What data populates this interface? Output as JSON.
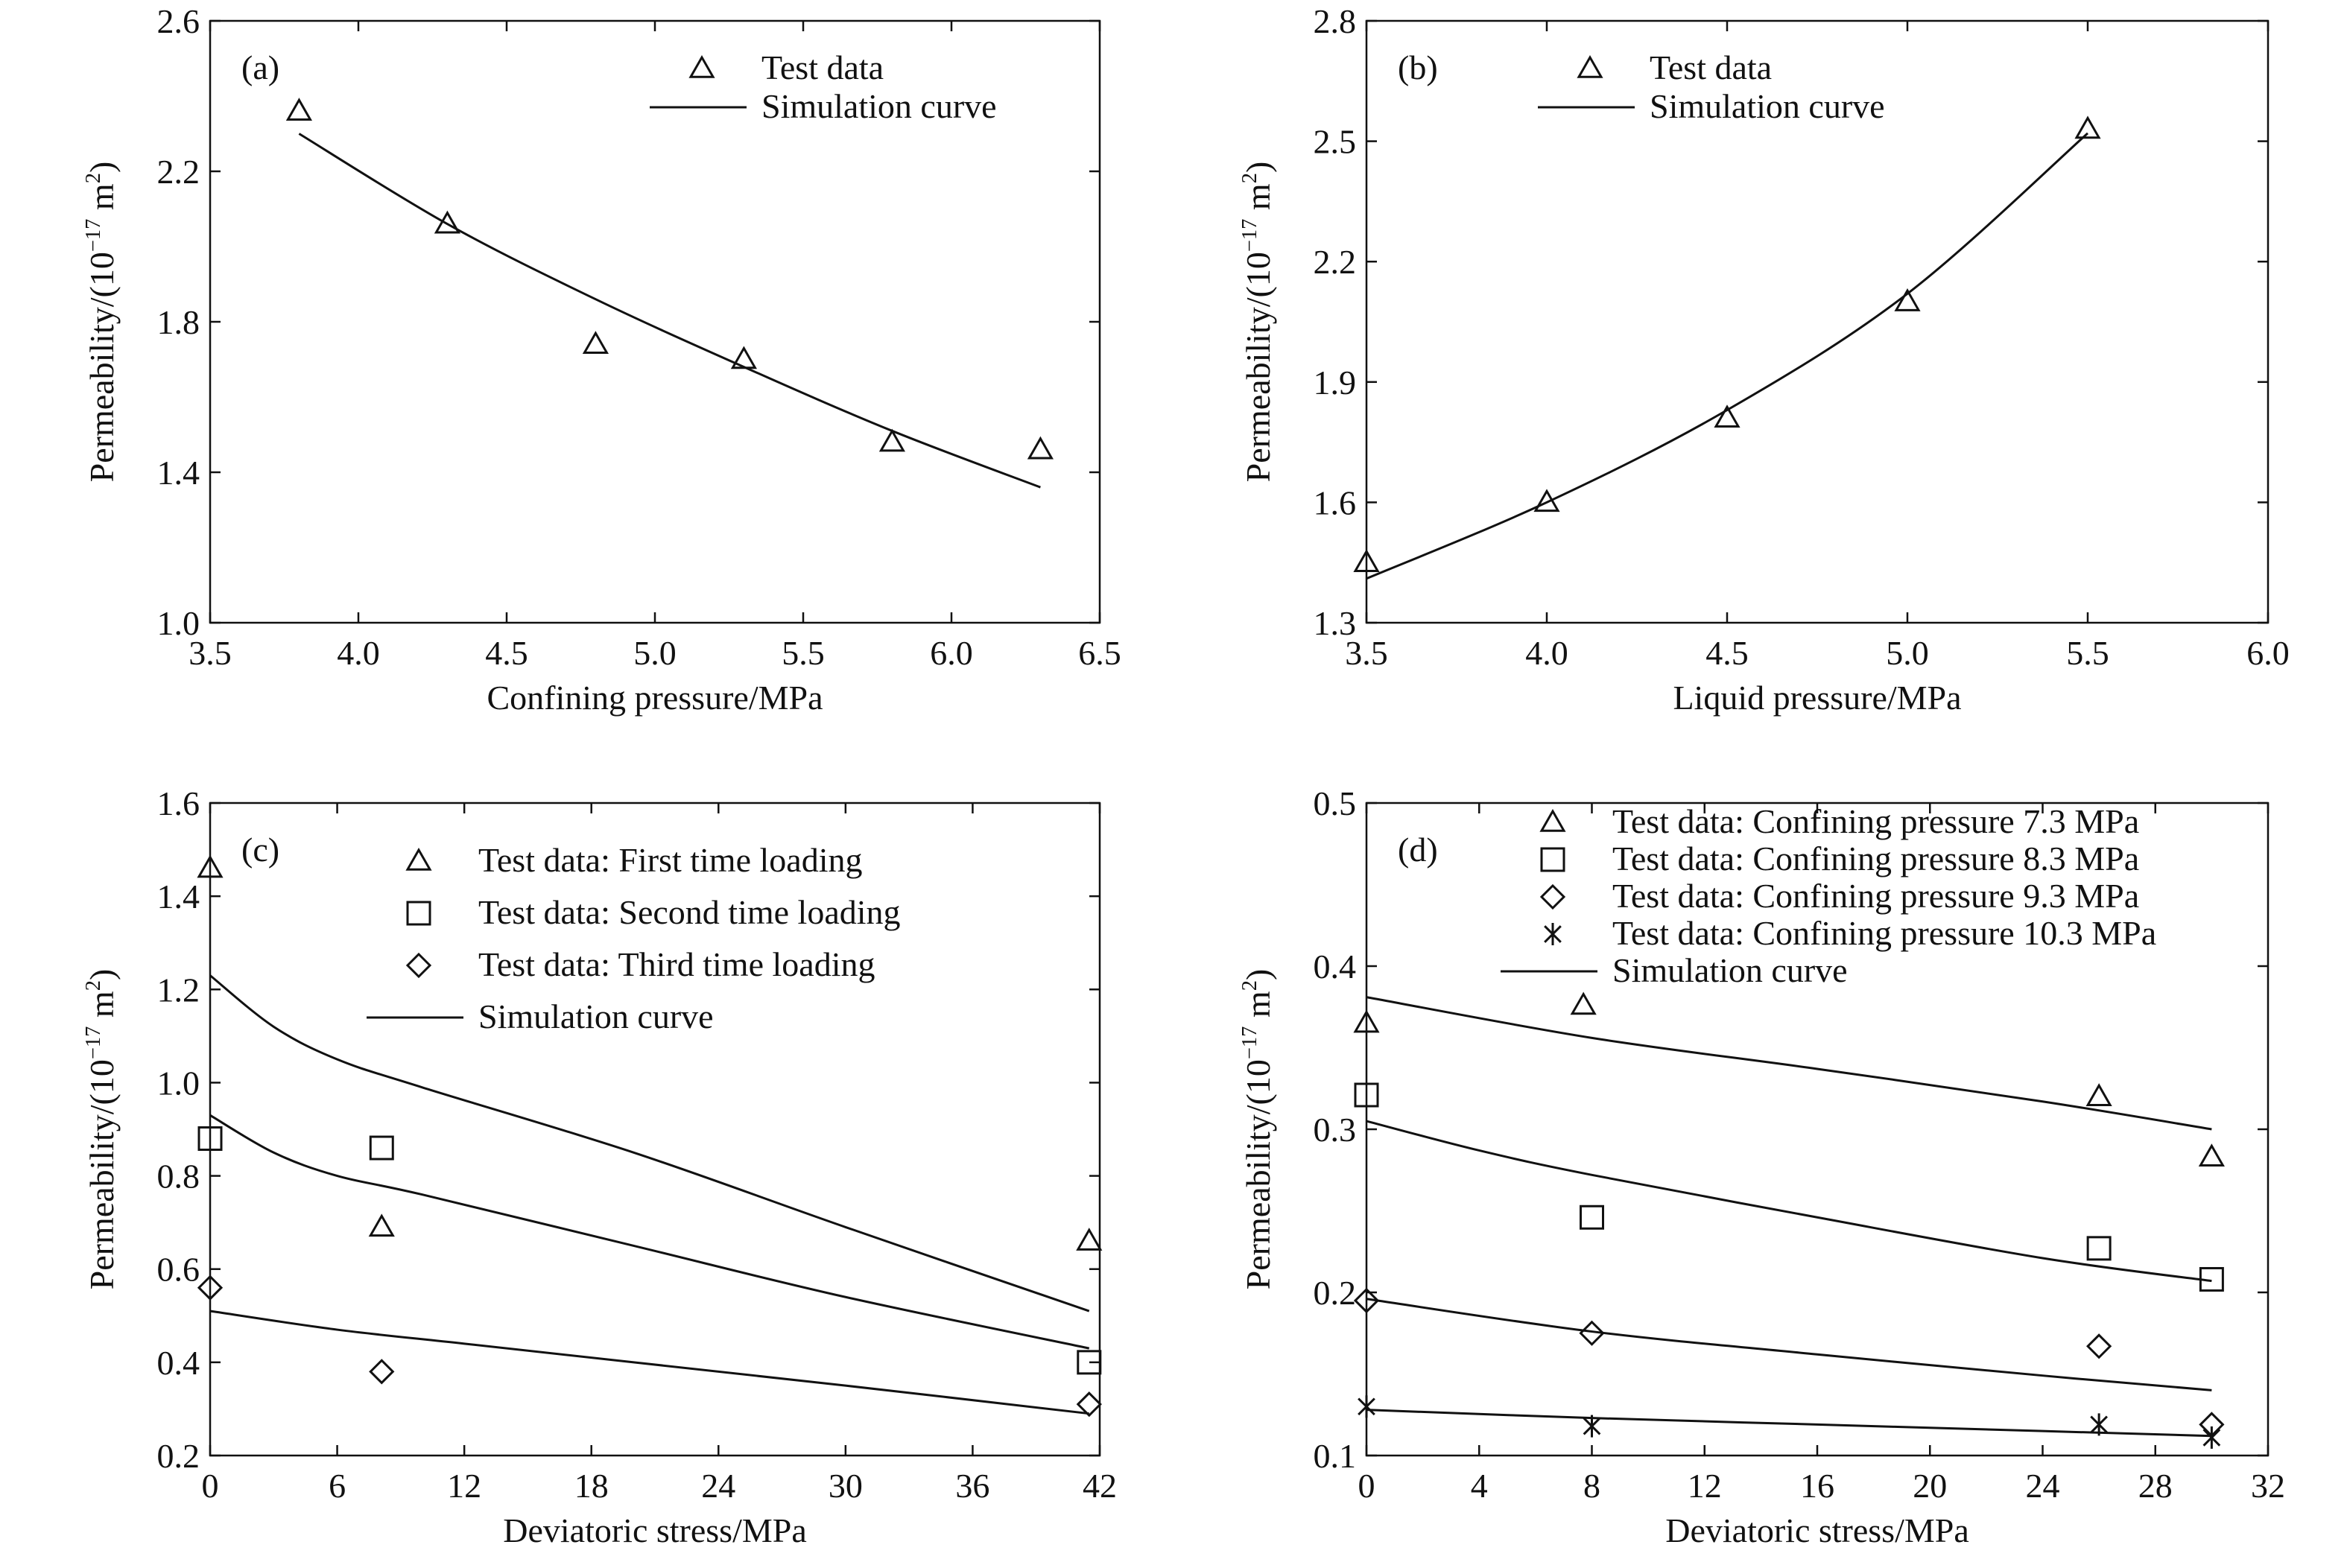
{
  "chart_data": [
    {
      "panel_label": "(a)",
      "type": "scatter",
      "xlabel": "Confining pressure/MPa",
      "ylabel_main": "Permeability/(10",
      "ylabel_exp": "−17",
      "ylabel_unit": " m",
      "ylabel_exp2": "2",
      "ylabel_close": ")",
      "xlim": [
        3.5,
        6.5
      ],
      "ylim": [
        1.0,
        2.6
      ],
      "xticks": [
        3.5,
        4.0,
        4.5,
        5.0,
        5.5,
        6.0,
        6.5
      ],
      "yticks": [
        1.0,
        1.4,
        1.8,
        2.2,
        2.6
      ],
      "x_decimals": 1,
      "y_decimals": 1,
      "legend": [
        {
          "marker": "triangle",
          "label": "Test data"
        },
        {
          "marker": "line",
          "label": "Simulation curve"
        }
      ],
      "series": [
        {
          "marker": "triangle",
          "x": [
            3.8,
            4.3,
            4.8,
            5.3,
            5.8,
            6.3
          ],
          "y": [
            2.36,
            2.06,
            1.74,
            1.7,
            1.48,
            1.46
          ]
        }
      ],
      "curves": [
        {
          "x": [
            3.8,
            4.3,
            4.8,
            5.3,
            5.8,
            6.3
          ],
          "y": [
            2.3,
            2.06,
            1.86,
            1.68,
            1.51,
            1.36
          ]
        }
      ]
    },
    {
      "panel_label": "(b)",
      "type": "scatter",
      "xlabel": "Liquid pressure/MPa",
      "ylabel_main": "Permeability/(10",
      "ylabel_exp": "−17",
      "ylabel_unit": " m",
      "ylabel_exp2": "2",
      "ylabel_close": ")",
      "xlim": [
        3.5,
        6.0
      ],
      "ylim": [
        1.3,
        2.8
      ],
      "xticks": [
        3.5,
        4.0,
        4.5,
        5.0,
        5.5,
        6.0
      ],
      "yticks": [
        1.3,
        1.6,
        1.9,
        2.2,
        2.5,
        2.8
      ],
      "x_decimals": 1,
      "y_decimals": 1,
      "legend": [
        {
          "marker": "triangle",
          "label": "Test data"
        },
        {
          "marker": "line",
          "label": "Simulation curve"
        }
      ],
      "series": [
        {
          "marker": "triangle",
          "x": [
            3.5,
            4.0,
            4.5,
            5.0,
            5.5
          ],
          "y": [
            1.45,
            1.6,
            1.81,
            2.1,
            2.53
          ]
        }
      ],
      "curves": [
        {
          "x": [
            3.5,
            4.0,
            4.5,
            5.0,
            5.5
          ],
          "y": [
            1.41,
            1.6,
            1.83,
            2.12,
            2.52
          ]
        }
      ]
    },
    {
      "panel_label": "(c)",
      "type": "scatter",
      "xlabel": "Deviatoric stress/MPa",
      "ylabel_main": "Permeability/(10",
      "ylabel_exp": "−17",
      "ylabel_unit": " m",
      "ylabel_exp2": "2",
      "ylabel_close": ")",
      "xlim": [
        0,
        42
      ],
      "ylim": [
        0.2,
        1.6
      ],
      "xticks": [
        0,
        6,
        12,
        18,
        24,
        30,
        36,
        42
      ],
      "yticks": [
        0.2,
        0.4,
        0.6,
        0.8,
        1.0,
        1.2,
        1.4,
        1.6
      ],
      "x_decimals": 0,
      "y_decimals": 1,
      "legend": [
        {
          "marker": "triangle",
          "label": "Test data: First time loading"
        },
        {
          "marker": "square",
          "label": "Test data: Second time loading"
        },
        {
          "marker": "diamond",
          "label": "Test data: Third time loading"
        },
        {
          "marker": "line",
          "label": "Simulation curve"
        }
      ],
      "series": [
        {
          "marker": "triangle",
          "x": [
            0,
            8.1,
            41.5
          ],
          "y": [
            1.46,
            0.69,
            0.66
          ]
        },
        {
          "marker": "square",
          "x": [
            0,
            8.1,
            41.5
          ],
          "y": [
            0.88,
            0.86,
            0.4
          ]
        },
        {
          "marker": "diamond",
          "x": [
            0,
            8.1,
            41.5
          ],
          "y": [
            0.56,
            0.38,
            0.31
          ]
        }
      ],
      "curves": [
        {
          "x": [
            0,
            3,
            6,
            10,
            20,
            30,
            41.5
          ],
          "y": [
            1.23,
            1.12,
            1.05,
            0.99,
            0.85,
            0.69,
            0.51
          ]
        },
        {
          "x": [
            0,
            3,
            6,
            10,
            20,
            30,
            41.5
          ],
          "y": [
            0.93,
            0.85,
            0.8,
            0.76,
            0.65,
            0.54,
            0.43
          ]
        },
        {
          "x": [
            0,
            6,
            12,
            20,
            30,
            41.5
          ],
          "y": [
            0.51,
            0.47,
            0.44,
            0.4,
            0.35,
            0.29
          ]
        }
      ]
    },
    {
      "panel_label": "(d)",
      "type": "scatter",
      "xlabel": "Deviatoric stress/MPa",
      "ylabel_main": "Permeability/(10",
      "ylabel_exp": "−17",
      "ylabel_unit": " m",
      "ylabel_exp2": "2",
      "ylabel_close": ")",
      "xlim": [
        0,
        32
      ],
      "ylim": [
        0.1,
        0.5
      ],
      "xticks": [
        0,
        4,
        8,
        12,
        16,
        20,
        24,
        28,
        32
      ],
      "yticks": [
        0.1,
        0.2,
        0.3,
        0.4,
        0.5
      ],
      "x_decimals": 0,
      "y_decimals": 1,
      "legend": [
        {
          "marker": "triangle",
          "label": "Test data: Confining pressure 7.3 MPa"
        },
        {
          "marker": "square",
          "label": "Test data: Confining pressure 8.3 MPa"
        },
        {
          "marker": "diamond",
          "label": "Test data: Confining pressure 9.3 MPa"
        },
        {
          "marker": "asterisk",
          "label": "Test data: Confining pressure 10.3 MPa"
        },
        {
          "marker": "line",
          "label": "Simulation curve"
        }
      ],
      "series": [
        {
          "marker": "triangle",
          "x": [
            0,
            7.7,
            26,
            30
          ],
          "y": [
            0.365,
            0.376,
            0.32,
            0.283
          ]
        },
        {
          "marker": "square",
          "x": [
            0,
            8,
            26,
            30
          ],
          "y": [
            0.321,
            0.246,
            0.227,
            0.208
          ]
        },
        {
          "marker": "diamond",
          "x": [
            0,
            8,
            26,
            30
          ],
          "y": [
            0.195,
            0.175,
            0.167,
            0.119
          ]
        },
        {
          "marker": "asterisk",
          "x": [
            0,
            8,
            26,
            30
          ],
          "y": [
            0.13,
            0.118,
            0.119,
            0.111
          ]
        }
      ],
      "curves": [
        {
          "x": [
            0,
            8,
            16,
            24,
            30
          ],
          "y": [
            0.381,
            0.356,
            0.337,
            0.317,
            0.3
          ]
        },
        {
          "x": [
            0,
            4,
            8,
            16,
            24,
            30
          ],
          "y": [
            0.305,
            0.287,
            0.272,
            0.246,
            0.221,
            0.207
          ]
        },
        {
          "x": [
            0,
            8,
            16,
            24,
            30
          ],
          "y": [
            0.196,
            0.176,
            0.162,
            0.149,
            0.14
          ]
        },
        {
          "x": [
            0,
            8,
            16,
            24,
            30
          ],
          "y": [
            0.128,
            0.123,
            0.119,
            0.115,
            0.112
          ]
        }
      ]
    }
  ]
}
